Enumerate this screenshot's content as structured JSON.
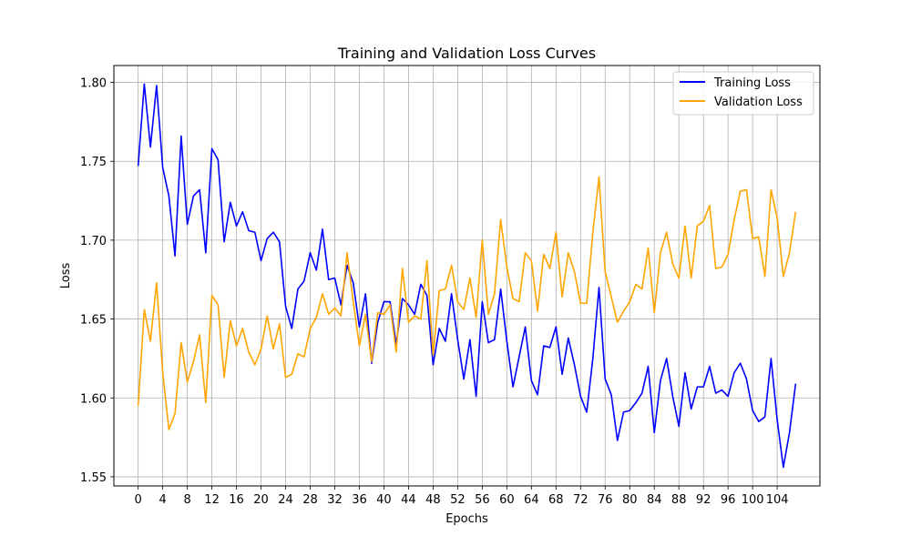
{
  "chart_data": {
    "type": "line",
    "title": "Training and Validation Loss Curves",
    "xlabel": "Epochs",
    "ylabel": "Loss",
    "xlim": [
      -3.95,
      110.95
    ],
    "ylim": [
      1.5442,
      1.8107
    ],
    "xticks": [
      0,
      4,
      8,
      12,
      16,
      20,
      24,
      28,
      32,
      36,
      40,
      44,
      48,
      52,
      56,
      60,
      64,
      68,
      72,
      76,
      80,
      84,
      88,
      92,
      96,
      100,
      104
    ],
    "yticks": [
      1.55,
      1.6,
      1.65,
      1.7,
      1.75,
      1.8
    ],
    "ytick_labels": [
      "1.55",
      "1.60",
      "1.65",
      "1.70",
      "1.75",
      "1.80"
    ],
    "grid": true,
    "legend_position": "top-right",
    "series": [
      {
        "name": "Training Loss",
        "color": "#0000ff",
        "values": [
          1.747,
          1.799,
          1.759,
          1.798,
          1.746,
          1.728,
          1.69,
          1.766,
          1.71,
          1.728,
          1.732,
          1.692,
          1.758,
          1.751,
          1.699,
          1.724,
          1.709,
          1.718,
          1.706,
          1.705,
          1.687,
          1.701,
          1.705,
          1.699,
          1.658,
          1.644,
          1.669,
          1.674,
          1.692,
          1.681,
          1.707,
          1.675,
          1.676,
          1.659,
          1.684,
          1.673,
          1.645,
          1.666,
          1.622,
          1.648,
          1.661,
          1.661,
          1.634,
          1.663,
          1.659,
          1.653,
          1.672,
          1.665,
          1.621,
          1.644,
          1.636,
          1.666,
          1.637,
          1.612,
          1.637,
          1.601,
          1.661,
          1.635,
          1.637,
          1.669,
          1.636,
          1.607,
          1.626,
          1.645,
          1.611,
          1.602,
          1.633,
          1.632,
          1.645,
          1.615,
          1.638,
          1.621,
          1.601,
          1.591,
          1.625,
          1.67,
          1.612,
          1.602,
          1.573,
          1.591,
          1.592,
          1.597,
          1.603,
          1.62,
          1.578,
          1.611,
          1.625,
          1.601,
          1.582,
          1.616,
          1.593,
          1.607,
          1.607,
          1.62,
          1.603,
          1.605,
          1.601,
          1.616,
          1.622,
          1.612,
          1.592,
          1.585,
          1.588,
          1.625,
          1.586,
          1.556,
          1.578,
          1.609
        ]
      },
      {
        "name": "Validation Loss",
        "color": "#ffa500",
        "values": [
          1.595,
          1.656,
          1.636,
          1.673,
          1.616,
          1.58,
          1.59,
          1.635,
          1.61,
          1.623,
          1.64,
          1.597,
          1.665,
          1.659,
          1.613,
          1.649,
          1.633,
          1.644,
          1.629,
          1.621,
          1.631,
          1.652,
          1.631,
          1.647,
          1.613,
          1.615,
          1.628,
          1.626,
          1.644,
          1.651,
          1.666,
          1.653,
          1.657,
          1.652,
          1.692,
          1.661,
          1.633,
          1.653,
          1.623,
          1.654,
          1.653,
          1.659,
          1.629,
          1.682,
          1.648,
          1.652,
          1.65,
          1.687,
          1.627,
          1.668,
          1.669,
          1.684,
          1.661,
          1.656,
          1.676,
          1.651,
          1.7,
          1.653,
          1.666,
          1.713,
          1.683,
          1.663,
          1.661,
          1.692,
          1.687,
          1.655,
          1.691,
          1.682,
          1.705,
          1.664,
          1.692,
          1.68,
          1.66,
          1.66,
          1.705,
          1.74,
          1.68,
          1.664,
          1.648,
          1.655,
          1.661,
          1.672,
          1.669,
          1.695,
          1.654,
          1.692,
          1.705,
          1.685,
          1.676,
          1.709,
          1.676,
          1.709,
          1.712,
          1.722,
          1.682,
          1.683,
          1.691,
          1.713,
          1.731,
          1.732,
          1.701,
          1.702,
          1.677,
          1.732,
          1.714,
          1.677,
          1.692,
          1.718
        ]
      }
    ]
  }
}
